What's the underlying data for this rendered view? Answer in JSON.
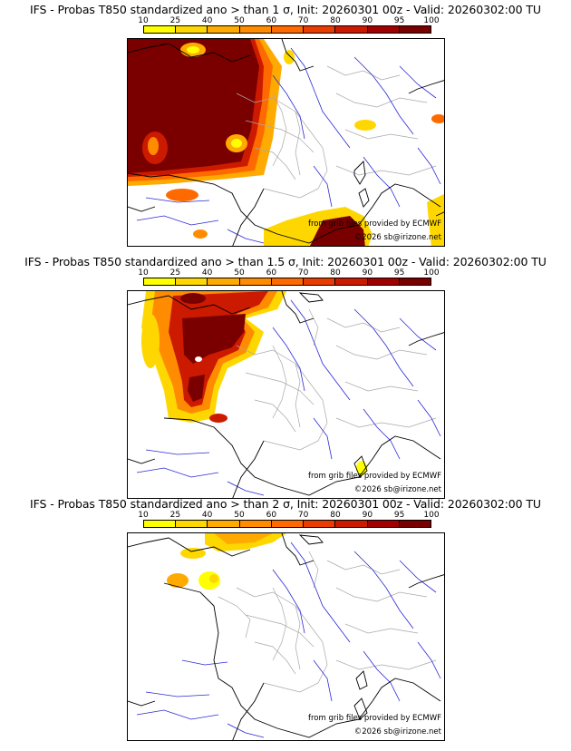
{
  "panels": [
    {
      "title": "IFS - Probas T850  standardized ano > than 1 σ, Init: 20260301 00z - Valid: 20260302:00 TU"
    },
    {
      "title": "IFS - Probas T850  standardized ano > than 1.5 σ, Init: 20260301 00z - Valid: 20260302:00 TU"
    },
    {
      "title": "IFS - Probas T850  standardized ano > than 2 σ, Init: 20260301 00z - Valid: 20260302:00 TU"
    }
  ],
  "scale": {
    "labels": [
      "10",
      "25",
      "40",
      "50",
      "60",
      "70",
      "80",
      "90",
      "95",
      "100"
    ],
    "colors": [
      "#ffff00",
      "#ffd700",
      "#ffaa00",
      "#ff8c00",
      "#ff6a00",
      "#e83c00",
      "#cc1a00",
      "#a00000",
      "#7a0000"
    ]
  },
  "credits": {
    "source": "from grib files provided by ECMWF",
    "copyright": "©2026 sb@irizone.net"
  },
  "colors": {
    "coast": "#000000",
    "rivers": "#2a2ad8",
    "borders": "#a8a8a8"
  }
}
